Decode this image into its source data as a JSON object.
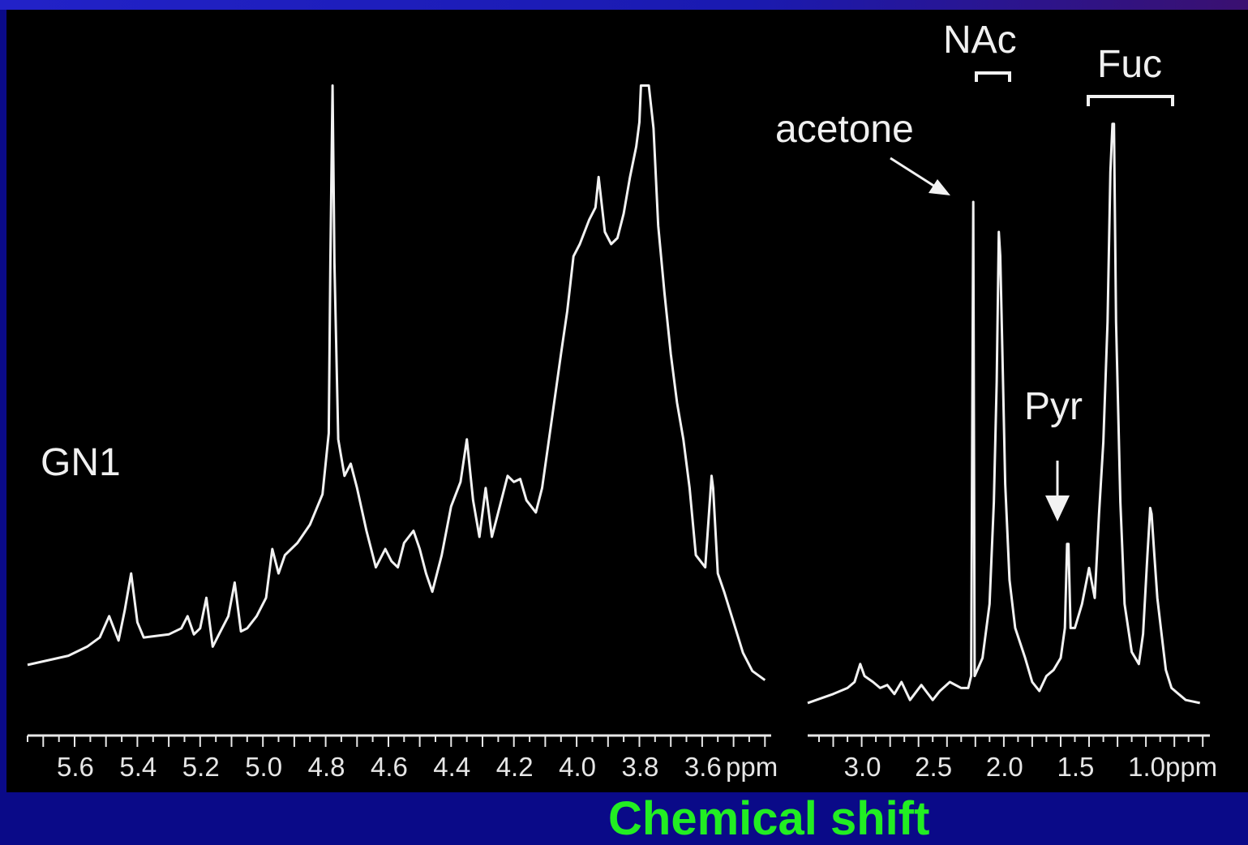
{
  "colors": {
    "background": "#0a0a88",
    "panel": "#000000",
    "trace": "#f2f2f2",
    "xlabel": "#22ee22"
  },
  "chart_data": {
    "type": "line",
    "xlabel": "Chemical shift",
    "sample_label": "GN1",
    "panels": [
      {
        "unit": "ppm",
        "xlim": [
          5.75,
          3.38
        ],
        "ticks": [
          "5.6",
          "5.4",
          "5.2",
          "5.0",
          "4.8",
          "4.6",
          "4.4",
          "4.2",
          "4.0",
          "3.8",
          "3.6"
        ],
        "tick_values": [
          5.6,
          5.4,
          5.2,
          5.0,
          4.8,
          4.6,
          4.4,
          4.2,
          4.0,
          3.8,
          3.6
        ],
        "ylim": [
          0,
          100
        ],
        "points": [
          [
            5.75,
            4
          ],
          [
            5.62,
            5.5
          ],
          [
            5.56,
            7
          ],
          [
            5.52,
            8.5
          ],
          [
            5.49,
            12
          ],
          [
            5.46,
            8
          ],
          [
            5.44,
            13
          ],
          [
            5.42,
            19
          ],
          [
            5.4,
            11
          ],
          [
            5.38,
            8.5
          ],
          [
            5.3,
            9
          ],
          [
            5.26,
            10
          ],
          [
            5.24,
            12
          ],
          [
            5.22,
            9
          ],
          [
            5.2,
            10
          ],
          [
            5.18,
            15
          ],
          [
            5.16,
            7
          ],
          [
            5.14,
            9
          ],
          [
            5.11,
            12
          ],
          [
            5.09,
            17.5
          ],
          [
            5.07,
            9.5
          ],
          [
            5.05,
            10
          ],
          [
            5.02,
            12
          ],
          [
            4.99,
            15
          ],
          [
            4.97,
            23
          ],
          [
            4.95,
            19
          ],
          [
            4.93,
            22
          ],
          [
            4.89,
            24
          ],
          [
            4.85,
            27
          ],
          [
            4.81,
            32
          ],
          [
            4.79,
            42
          ],
          [
            4.785,
            70
          ],
          [
            4.778,
            99
          ],
          [
            4.772,
            70
          ],
          [
            4.76,
            41
          ],
          [
            4.74,
            35
          ],
          [
            4.72,
            37
          ],
          [
            4.7,
            33
          ],
          [
            4.67,
            26
          ],
          [
            4.64,
            20
          ],
          [
            4.61,
            23
          ],
          [
            4.59,
            21
          ],
          [
            4.57,
            20
          ],
          [
            4.55,
            24
          ],
          [
            4.52,
            26
          ],
          [
            4.5,
            23
          ],
          [
            4.48,
            19
          ],
          [
            4.46,
            16
          ],
          [
            4.43,
            22
          ],
          [
            4.4,
            30
          ],
          [
            4.37,
            34
          ],
          [
            4.35,
            41
          ],
          [
            4.33,
            31
          ],
          [
            4.31,
            25
          ],
          [
            4.29,
            33
          ],
          [
            4.27,
            25
          ],
          [
            4.25,
            29
          ],
          [
            4.22,
            35
          ],
          [
            4.2,
            34
          ],
          [
            4.18,
            34.5
          ],
          [
            4.16,
            31
          ],
          [
            4.13,
            29
          ],
          [
            4.11,
            33
          ],
          [
            4.08,
            44
          ],
          [
            4.05,
            55
          ],
          [
            4.03,
            62
          ],
          [
            4.01,
            71
          ],
          [
            3.99,
            73
          ],
          [
            3.96,
            77
          ],
          [
            3.94,
            79
          ],
          [
            3.93,
            84
          ],
          [
            3.91,
            75
          ],
          [
            3.89,
            73
          ],
          [
            3.87,
            74
          ],
          [
            3.85,
            78
          ],
          [
            3.83,
            84
          ],
          [
            3.81,
            89
          ],
          [
            3.8,
            93
          ],
          [
            3.795,
            99
          ],
          [
            3.77,
            99
          ],
          [
            3.755,
            92
          ],
          [
            3.74,
            76
          ],
          [
            3.72,
            65
          ],
          [
            3.7,
            55
          ],
          [
            3.68,
            47
          ],
          [
            3.66,
            41
          ],
          [
            3.64,
            33
          ],
          [
            3.62,
            22
          ],
          [
            3.59,
            20
          ],
          [
            3.57,
            35
          ],
          [
            3.565,
            33
          ],
          [
            3.55,
            19
          ],
          [
            3.53,
            16
          ],
          [
            3.5,
            11
          ],
          [
            3.47,
            6
          ],
          [
            3.44,
            3
          ],
          [
            3.4,
            1.5
          ]
        ]
      },
      {
        "unit": "ppm",
        "xlim": [
          3.38,
          0.55
        ],
        "ticks": [
          "3.0",
          "2.5",
          "2.0",
          "1.5",
          "1.0ppm"
        ],
        "tick_values": [
          3.0,
          2.5,
          2.0,
          1.5,
          1.0
        ],
        "ylim": [
          0,
          100
        ],
        "points": [
          [
            3.38,
            1.5
          ],
          [
            3.2,
            3
          ],
          [
            3.1,
            4
          ],
          [
            3.05,
            5
          ],
          [
            3.01,
            8
          ],
          [
            2.98,
            6
          ],
          [
            2.92,
            5
          ],
          [
            2.87,
            4
          ],
          [
            2.82,
            4.5
          ],
          [
            2.77,
            3
          ],
          [
            2.72,
            5
          ],
          [
            2.66,
            2
          ],
          [
            2.58,
            4.5
          ],
          [
            2.5,
            2
          ],
          [
            2.45,
            3.5
          ],
          [
            2.38,
            5
          ],
          [
            2.3,
            4
          ],
          [
            2.25,
            4
          ],
          [
            2.23,
            6
          ],
          [
            2.215,
            85
          ],
          [
            2.205,
            6
          ],
          [
            2.15,
            9
          ],
          [
            2.1,
            18
          ],
          [
            2.07,
            35
          ],
          [
            2.05,
            55
          ],
          [
            2.035,
            80
          ],
          [
            2.025,
            76
          ],
          [
            2.01,
            60
          ],
          [
            1.99,
            38
          ],
          [
            1.96,
            22
          ],
          [
            1.92,
            14
          ],
          [
            1.85,
            9
          ],
          [
            1.8,
            5
          ],
          [
            1.75,
            3.5
          ],
          [
            1.7,
            6
          ],
          [
            1.65,
            7
          ],
          [
            1.6,
            9
          ],
          [
            1.57,
            14
          ],
          [
            1.555,
            28
          ],
          [
            1.545,
            28
          ],
          [
            1.53,
            14
          ],
          [
            1.5,
            14
          ],
          [
            1.45,
            18
          ],
          [
            1.4,
            24
          ],
          [
            1.36,
            19
          ],
          [
            1.33,
            33
          ],
          [
            1.3,
            45
          ],
          [
            1.27,
            65
          ],
          [
            1.25,
            90
          ],
          [
            1.235,
            98
          ],
          [
            1.225,
            98
          ],
          [
            1.21,
            65
          ],
          [
            1.18,
            35
          ],
          [
            1.15,
            18
          ],
          [
            1.1,
            10
          ],
          [
            1.05,
            8
          ],
          [
            1.02,
            13
          ],
          [
            0.99,
            26
          ],
          [
            0.97,
            34
          ],
          [
            0.96,
            33
          ],
          [
            0.94,
            26
          ],
          [
            0.92,
            19
          ],
          [
            0.89,
            13
          ],
          [
            0.86,
            7
          ],
          [
            0.82,
            4
          ],
          [
            0.77,
            3
          ],
          [
            0.72,
            2
          ],
          [
            0.62,
            1.5
          ]
        ]
      }
    ],
    "annotations": {
      "acetone": "acetone",
      "nac": "NAc",
      "fuc": "Fuc",
      "pyr": "Pyr",
      "ppm": "ppm"
    }
  }
}
